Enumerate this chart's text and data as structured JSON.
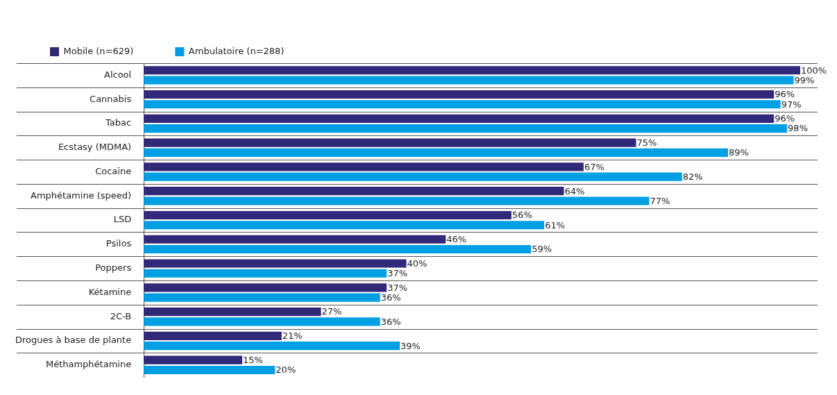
{
  "chart_data": {
    "type": "bar",
    "orientation": "horizontal",
    "categories": [
      "Alcool",
      "Cannabis",
      "Tabac",
      "Ecstasy (MDMA)",
      "Cocaïne",
      "Amphétamine (speed)",
      "LSD",
      "Psilos",
      "Poppers",
      "Kétamine",
      "2C-B",
      "Drogues à base de plante",
      "Méthamphétamine"
    ],
    "series": [
      {
        "name": "Mobile (n=629)",
        "color": "#32287a",
        "values": [
          100,
          96,
          96,
          75,
          67,
          64,
          56,
          46,
          40,
          37,
          27,
          21,
          15
        ],
        "value_labels": [
          "100%",
          "96%",
          "96%",
          "75%",
          "67%",
          "64%",
          "56%",
          "46%",
          "40%",
          "37%",
          "27%",
          "21%",
          "15%"
        ]
      },
      {
        "name": "Ambulatoire (n=288)",
        "color": "#009fe3",
        "values": [
          99,
          97,
          98,
          89,
          82,
          77,
          61,
          59,
          37,
          36,
          36,
          39,
          20
        ],
        "value_labels": [
          "99%",
          "97%",
          "98%",
          "89%",
          "82%",
          "77%",
          "61%",
          "59%",
          "37%",
          "36%",
          "36%",
          "39%",
          "20%"
        ]
      }
    ],
    "xlim": [
      0,
      100
    ],
    "tick_labels": "y",
    "grid": "y",
    "legend": "top left"
  }
}
